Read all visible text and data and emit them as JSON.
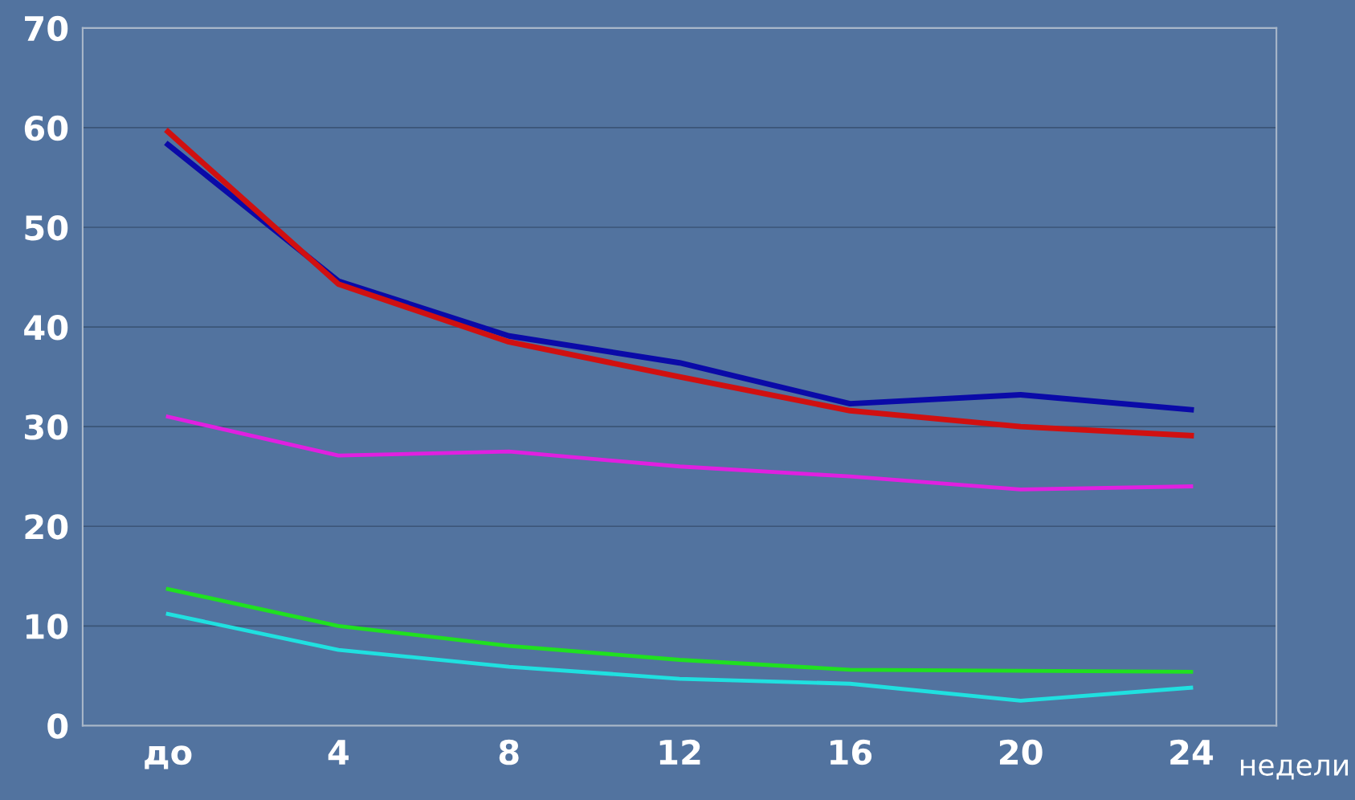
{
  "chart_data": {
    "type": "line",
    "categories": [
      "до",
      "4",
      "8",
      "12",
      "16",
      "20",
      "24"
    ],
    "xlabel": "недели",
    "series": [
      {
        "color": "#0a0aa8",
        "values": [
          58.3,
          44.6,
          39.1,
          36.4,
          32.3,
          33.2,
          31.7
        ]
      },
      {
        "color": "#d01010",
        "values": [
          59.6,
          44.3,
          38.5,
          35.0,
          31.6,
          30.0,
          29.1
        ]
      },
      {
        "color": "#e020e0",
        "values": [
          31.0,
          27.1,
          27.5,
          26.0,
          25.0,
          23.7,
          24.0
        ]
      },
      {
        "color": "#20e020",
        "values": [
          13.7,
          10.0,
          8.0,
          6.6,
          5.6,
          5.5,
          5.4
        ]
      },
      {
        "color": "#20e0e0",
        "values": [
          11.2,
          7.6,
          5.9,
          4.7,
          4.2,
          2.5,
          3.8
        ]
      }
    ],
    "ylim": [
      0,
      70
    ],
    "yticks": [
      0,
      10,
      20,
      30,
      40,
      50,
      60,
      70
    ],
    "grid": "y",
    "marker": "none",
    "line_style": "solid",
    "legend": false
  }
}
